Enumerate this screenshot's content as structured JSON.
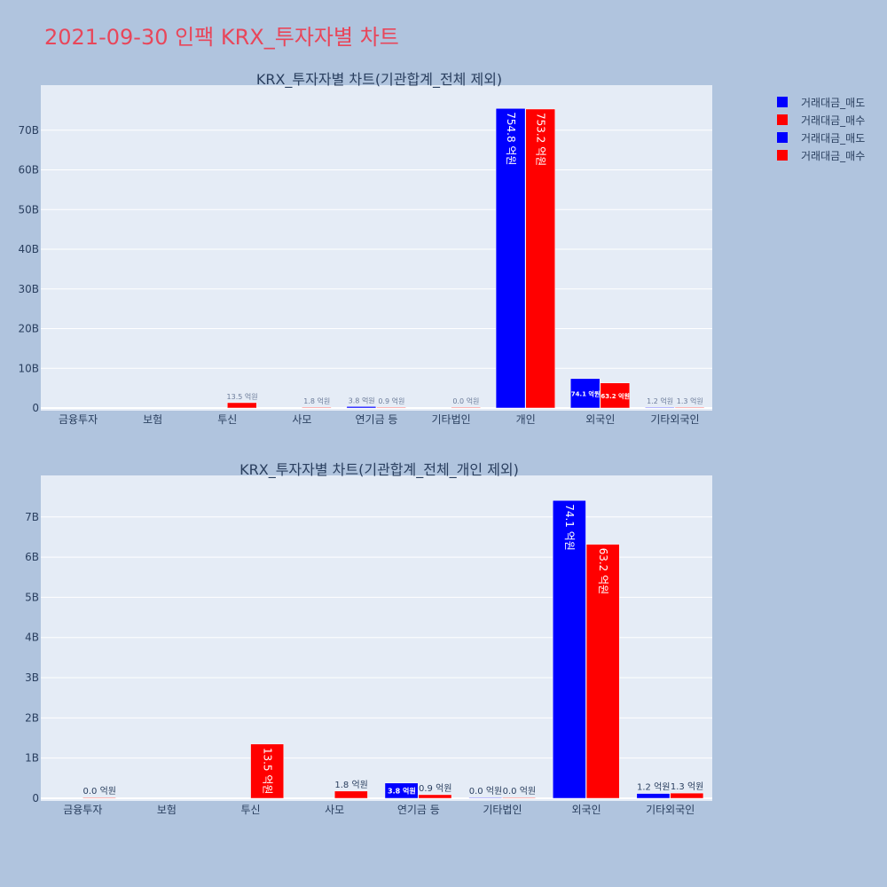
{
  "page": {
    "title": "2021-09-30 인팩 KRX_투자자별 차트"
  },
  "legend": {
    "items": [
      {
        "label": "거래대금_매도",
        "color": "#0000ff"
      },
      {
        "label": "거래대금_매수",
        "color": "#ff0000"
      },
      {
        "label": "거래대금_매도",
        "color": "#0000ff"
      },
      {
        "label": "거래대금_매수",
        "color": "#ff0000"
      }
    ]
  },
  "chart_data": [
    {
      "type": "bar",
      "title": "KRX_투자자별 차트(기관합계_전체 제외)",
      "categories": [
        "금융투자",
        "보험",
        "투신",
        "사모",
        "연기금 등",
        "기타법인",
        "개인",
        "외국인",
        "기타외국인"
      ],
      "ylim": [
        0,
        80
      ],
      "yticks": [
        0,
        10,
        20,
        30,
        40,
        50,
        60,
        70
      ],
      "ytick_labels": [
        "0",
        "10B",
        "20B",
        "30B",
        "40B",
        "50B",
        "60B",
        "70B"
      ],
      "grid": true,
      "legend_position": "top-right",
      "series": [
        {
          "name": "거래대금_매도",
          "color": "#0000ff",
          "values": [
            null,
            null,
            null,
            null,
            0.38,
            null,
            75.48,
            7.41,
            0.12
          ],
          "labels": [
            null,
            null,
            null,
            null,
            "3.8 억원",
            null,
            "754.8 억원",
            "74.1 억원",
            "1.2 억원"
          ]
        },
        {
          "name": "거래대금_매수",
          "color": "#ff0000",
          "values": [
            null,
            null,
            1.35,
            0.18,
            0.09,
            0.0,
            75.32,
            6.32,
            0.13
          ],
          "labels": [
            null,
            null,
            "13.5 억원",
            "1.8 억원",
            "0.9 억원",
            "0.0 억원",
            "753.2 억원",
            "63.2 억원",
            "1.3 억원"
          ]
        }
      ]
    },
    {
      "type": "bar",
      "title": "KRX_투자자별 차트(기관합계_전체_개인 제외)",
      "categories": [
        "금융투자",
        "보험",
        "투신",
        "사모",
        "연기금 등",
        "기타법인",
        "외국인",
        "기타외국인"
      ],
      "ylim": [
        0,
        7.9
      ],
      "yticks": [
        0,
        1,
        2,
        3,
        4,
        5,
        6,
        7
      ],
      "ytick_labels": [
        "0",
        "1B",
        "2B",
        "3B",
        "4B",
        "5B",
        "6B",
        "7B"
      ],
      "grid": true,
      "legend_position": "top-right",
      "series": [
        {
          "name": "거래대금_매도",
          "color": "#0000ff",
          "values": [
            null,
            null,
            null,
            null,
            0.38,
            0.0,
            7.41,
            0.12
          ],
          "labels": [
            null,
            null,
            null,
            null,
            "3.8 억원",
            "0.0 억원",
            "74.1 억원",
            "1.2 억원"
          ]
        },
        {
          "name": "거래대금_매수",
          "color": "#ff0000",
          "values": [
            0.0,
            null,
            1.35,
            0.18,
            0.09,
            0.0,
            6.32,
            0.13
          ],
          "labels": [
            "0.0 억원",
            null,
            "13.5 억원",
            "1.8 억원",
            "0.9 억원",
            "0.0 억원",
            "63.2 억원",
            "1.3 억원"
          ]
        }
      ]
    }
  ]
}
